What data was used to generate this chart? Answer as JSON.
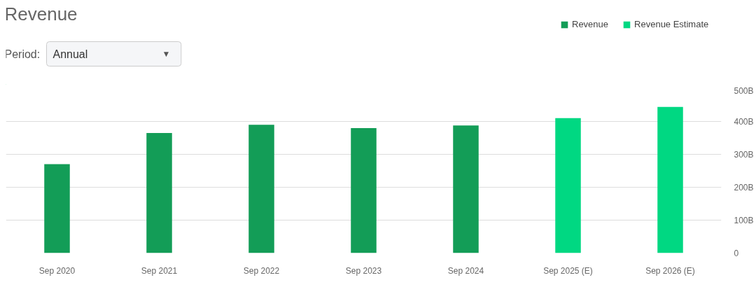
{
  "chart_data": {
    "type": "bar",
    "title": "Revenue",
    "annotations": [
      "Period:",
      "Annual",
      "▼"
    ],
    "categories": [
      "Sep 2020",
      "Sep 2021",
      "Sep 2022",
      "Sep 2023",
      "Sep 2024",
      "Sep 2025 (E)",
      "Sep 2026 (E)"
    ],
    "series": [
      {
        "name": "Revenue",
        "color": "#139d57",
        "values": [
          270,
          365,
          390,
          380,
          388,
          null,
          null
        ]
      },
      {
        "name": "Revenue Estimate",
        "color": "#00d882",
        "values": [
          null,
          null,
          null,
          null,
          null,
          410,
          444
        ]
      }
    ],
    "ylim": [
      0,
      500
    ],
    "yticks": [
      {
        "value": 0,
        "label": "0"
      },
      {
        "value": 100,
        "label": "100B"
      },
      {
        "value": 200,
        "label": "200B"
      },
      {
        "value": 300,
        "label": "300B"
      },
      {
        "value": 400,
        "label": "400B"
      },
      {
        "value": 500,
        "label": "500B"
      }
    ],
    "grid": "y",
    "legend": "top right"
  }
}
